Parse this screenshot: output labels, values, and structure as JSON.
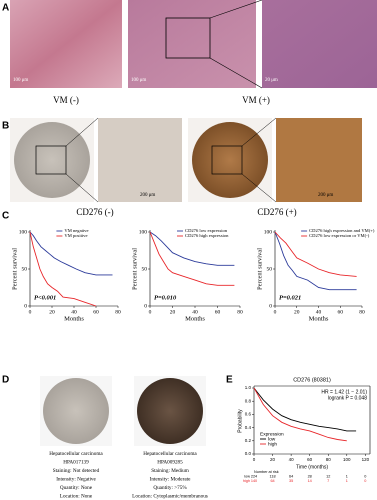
{
  "panel_labels": [
    "A",
    "B",
    "C",
    "D",
    "E"
  ],
  "panel_a": {
    "scale_bars": [
      "100 μm",
      "100 μm",
      "20 μm"
    ],
    "captions": [
      "VM (-)",
      "VM (+)"
    ]
  },
  "panel_b": {
    "scale_bars": [
      "200 μm",
      "200 μm"
    ],
    "captions": [
      "CD276 (-)",
      "CD276 (+)"
    ]
  },
  "panel_d": {
    "left": [
      "Hepatocellular carcinoma",
      "HPA017139",
      "Staining: Not detected",
      "Intensity: Negative",
      "Quantity: None",
      "Location: None"
    ],
    "right": [
      "Hepatocellular carcinoma",
      "HPA009285",
      "Staining: Medium",
      "Intensity: Moderate",
      "Quantity: >75%",
      "Location: Cytoplasmic/membranous"
    ]
  },
  "chart_data": [
    {
      "type": "line",
      "xlabel": "Months",
      "ylabel": "Percent survival",
      "annotation": "P<0.001",
      "legend": "upper right",
      "xlim": [
        0,
        80
      ],
      "ylim": [
        0,
        100
      ],
      "xticks": [
        0,
        20,
        40,
        60,
        80
      ],
      "yticks": [
        0,
        50,
        100
      ],
      "series": [
        {
          "name": "VM negative",
          "color": "#2b3a9a",
          "x": [
            0,
            3,
            6,
            10,
            14,
            18,
            22,
            28,
            35,
            42,
            50,
            60,
            75
          ],
          "values": [
            100,
            95,
            88,
            80,
            75,
            70,
            65,
            60,
            55,
            50,
            45,
            42,
            42
          ]
        },
        {
          "name": "VM positive",
          "color": "#e8262a",
          "x": [
            0,
            3,
            6,
            9,
            12,
            16,
            20,
            25,
            30,
            40,
            50,
            60
          ],
          "values": [
            100,
            80,
            65,
            50,
            40,
            30,
            25,
            20,
            12,
            10,
            5,
            0
          ]
        }
      ]
    },
    {
      "type": "line",
      "xlabel": "Months",
      "ylabel": "Percent survival",
      "annotation": "P=0.010",
      "legend": "upper right",
      "xlim": [
        0,
        80
      ],
      "ylim": [
        0,
        100
      ],
      "xticks": [
        0,
        20,
        40,
        60,
        80
      ],
      "yticks": [
        0,
        50,
        100
      ],
      "series": [
        {
          "name": "CD276 low expression",
          "color": "#2b3a9a",
          "x": [
            0,
            5,
            10,
            15,
            20,
            30,
            40,
            50,
            60,
            75
          ],
          "values": [
            100,
            95,
            88,
            80,
            72,
            65,
            60,
            57,
            55,
            55
          ]
        },
        {
          "name": "CD276 high expression",
          "color": "#e8262a",
          "x": [
            0,
            4,
            8,
            12,
            16,
            20,
            30,
            40,
            50,
            60,
            75
          ],
          "values": [
            100,
            85,
            70,
            60,
            50,
            45,
            40,
            35,
            30,
            28,
            28
          ]
        }
      ]
    },
    {
      "type": "line",
      "xlabel": "Months",
      "ylabel": "Percent survival",
      "annotation": "P=0.021",
      "legend": "upper right",
      "xlim": [
        0,
        80
      ],
      "ylim": [
        0,
        100
      ],
      "xticks": [
        0,
        20,
        40,
        60,
        80
      ],
      "yticks": [
        0,
        50,
        100
      ],
      "series": [
        {
          "name": "CD276 high expression and VM(+)",
          "color": "#2b3a9a",
          "x": [
            0,
            4,
            8,
            12,
            16,
            20,
            30,
            40,
            50,
            60,
            75
          ],
          "values": [
            100,
            85,
            68,
            55,
            48,
            40,
            35,
            25,
            22,
            22,
            22
          ]
        },
        {
          "name": "CD276 low expression or VM(-)",
          "color": "#e8262a",
          "x": [
            0,
            5,
            10,
            15,
            20,
            30,
            40,
            50,
            60,
            75
          ],
          "values": [
            100,
            92,
            85,
            75,
            65,
            58,
            50,
            45,
            42,
            40
          ]
        }
      ]
    },
    {
      "type": "line",
      "title": "CD276 (80381)",
      "xlabel": "Time (months)",
      "ylabel": "Probability",
      "legend": "lower left",
      "legend_title": "Expression",
      "annotations": [
        "HR = 1.42 (1 − 2.01)",
        "logrank P = 0.048"
      ],
      "xlim": [
        0,
        125
      ],
      "ylim": [
        0,
        1
      ],
      "xticks": [
        0,
        20,
        40,
        60,
        80,
        100,
        120
      ],
      "yticks": [
        {
          "value": 0,
          "label": "0.0"
        },
        0.2,
        0.4,
        0.6,
        0.8,
        {
          "value": 1,
          "label": "1.0"
        }
      ],
      "series": [
        {
          "name": "low",
          "color": "#000000",
          "x": [
            0,
            10,
            20,
            30,
            40,
            50,
            60,
            70,
            80,
            90,
            100,
            110
          ],
          "values": [
            1,
            0.82,
            0.68,
            0.58,
            0.52,
            0.48,
            0.45,
            0.42,
            0.4,
            0.38,
            0.35,
            0.35
          ]
        },
        {
          "name": "high",
          "color": "#e8262a",
          "x": [
            0,
            10,
            20,
            30,
            40,
            50,
            60,
            70,
            80,
            90,
            100
          ],
          "values": [
            1,
            0.75,
            0.58,
            0.48,
            0.42,
            0.38,
            0.35,
            0.3,
            0.25,
            0.22,
            0.2
          ]
        }
      ],
      "risk_table": {
        "title": "Number at risk",
        "rows": [
          {
            "name": "low",
            "values": [
              224,
              118,
              64,
              28,
              12,
              1,
              0
            ]
          },
          {
            "name": "high",
            "values": [
              140,
              64,
              35,
              14,
              7,
              1,
              0
            ]
          }
        ]
      }
    }
  ]
}
